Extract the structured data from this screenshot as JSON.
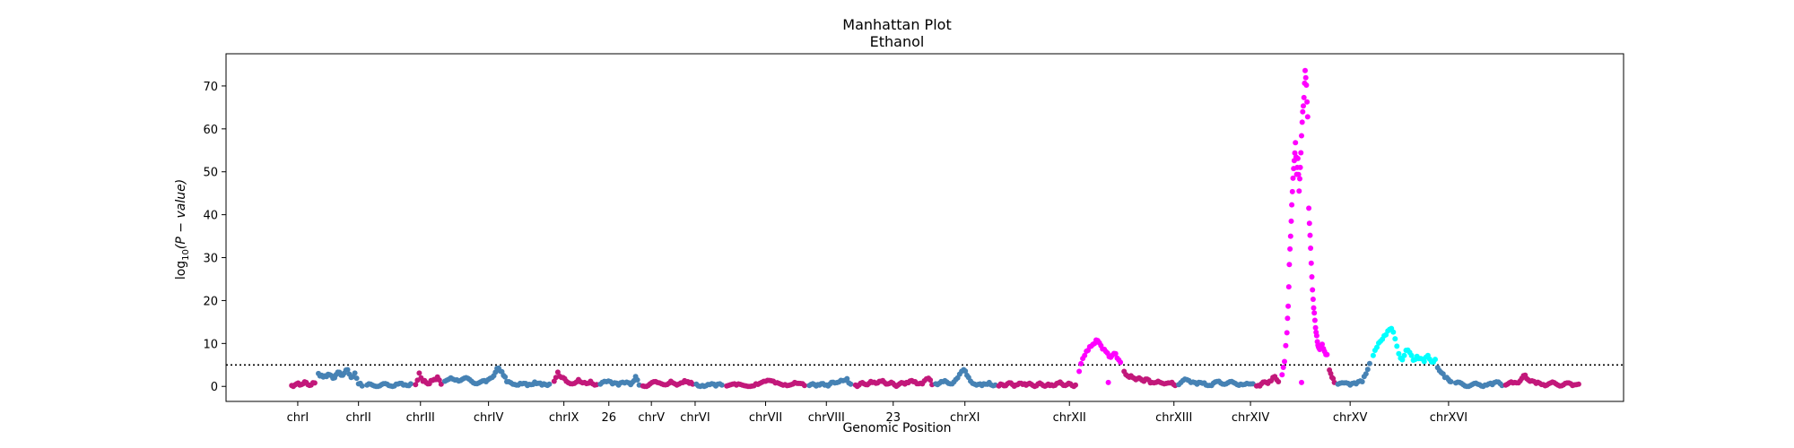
{
  "chart_data": {
    "type": "scatter",
    "title": "Manhattan Plot",
    "subtitle": "Ethanol",
    "xlabel": "Genomic Position",
    "ylabel_prefix": "log",
    "ylabel_sub": "10",
    "ylabel_rest": "(P − value)",
    "ylim": [
      -3.5,
      77.5
    ],
    "xlim": [
      0,
      100
    ],
    "y_ticks": [
      0,
      10,
      20,
      30,
      40,
      50,
      60,
      70
    ],
    "threshold": 5,
    "threshold_style": "dotted",
    "grid": false,
    "colors": {
      "magenta": "#c2187a",
      "steelblue": "#4682b4",
      "fuchsia": "#ff00ff",
      "cyan": "#00ffff",
      "axis": "#000000",
      "background": "#ffffff"
    },
    "chromosomes": [
      {
        "name": "chrI",
        "color": "magenta"
      },
      {
        "name": "chrII",
        "color": "steelblue"
      },
      {
        "name": "chrIII",
        "color": "magenta"
      },
      {
        "name": "chrIV",
        "color": "steelblue"
      },
      {
        "name": "chrIX",
        "color": "magenta"
      },
      {
        "name": "26",
        "color": "steelblue"
      },
      {
        "name": "chrV",
        "color": "magenta"
      },
      {
        "name": "chrVI",
        "color": "steelblue"
      },
      {
        "name": "chrVII",
        "color": "magenta"
      },
      {
        "name": "chrVIII",
        "color": "steelblue"
      },
      {
        "name": "23",
        "color": "magenta"
      },
      {
        "name": "chrXI",
        "color": "steelblue"
      },
      {
        "name": "chrXII",
        "color": "magenta"
      },
      {
        "name": "chrXIII",
        "color": "steelblue"
      },
      {
        "name": "chrXIV",
        "color": "magenta"
      },
      {
        "name": "chrXV",
        "color": "steelblue"
      },
      {
        "name": "chrXVI",
        "color": "magenta"
      }
    ],
    "series": [
      {
        "color": "magenta",
        "points": [
          [
            4.4,
            0.2
          ],
          [
            4.8,
            0.6
          ],
          [
            5.2,
            0.4
          ],
          [
            5.6,
            0.9
          ],
          [
            6.0,
            0.3
          ],
          [
            6.3,
            0.8
          ]
        ]
      },
      {
        "color": "steelblue",
        "points": [
          [
            6.6,
            3.0
          ],
          [
            7.0,
            2.2
          ],
          [
            7.4,
            2.8
          ],
          [
            7.8,
            1.9
          ],
          [
            8.2,
            3.3
          ],
          [
            8.6,
            2.6
          ],
          [
            9.0,
            3.9
          ],
          [
            9.3,
            2.1
          ],
          [
            9.6,
            3.1
          ],
          [
            9.9,
            0.6
          ],
          [
            10.2,
            0.1
          ]
        ]
      },
      {
        "color": "steelblue",
        "points": [
          [
            10.6,
            0.3
          ],
          [
            11.2,
            0.1
          ],
          [
            11.8,
            0.4
          ],
          [
            12.4,
            0.2
          ],
          [
            13.0,
            0.5
          ],
          [
            13.6,
            0.3
          ],
          [
            14.2,
            0.6
          ]
        ]
      },
      {
        "color": "magenta",
        "points": [
          [
            14.6,
            0.4
          ],
          [
            14.9,
            3.1
          ],
          [
            15.2,
            1.2
          ],
          [
            15.6,
            0.6
          ],
          [
            16.0,
            1.4
          ],
          [
            16.4,
            2.2
          ],
          [
            16.7,
            0.5
          ]
        ]
      },
      {
        "color": "steelblue",
        "points": [
          [
            17.0,
            1.2
          ],
          [
            17.5,
            2.0
          ],
          [
            18.0,
            1.5
          ],
          [
            18.6,
            1.9
          ],
          [
            19.2,
            1.2
          ],
          [
            19.8,
            0.8
          ],
          [
            20.4,
            1.1
          ],
          [
            20.9,
            2.1
          ],
          [
            21.3,
            4.2
          ],
          [
            21.7,
            3.4
          ],
          [
            22.1,
            1.1
          ],
          [
            22.6,
            0.5
          ],
          [
            23.2,
            0.7
          ],
          [
            23.8,
            0.2
          ],
          [
            24.4,
            1.0
          ],
          [
            25.0,
            0.3
          ],
          [
            25.6,
            0.5
          ]
        ]
      },
      {
        "color": "magenta",
        "points": [
          [
            26.0,
            1.2
          ],
          [
            26.3,
            3.3
          ],
          [
            26.6,
            2.1
          ],
          [
            27.0,
            1.2
          ],
          [
            27.5,
            0.6
          ],
          [
            28.0,
            1.6
          ],
          [
            28.5,
            0.9
          ],
          [
            29.0,
            1.2
          ],
          [
            29.5,
            0.4
          ]
        ]
      },
      {
        "color": "steelblue",
        "points": [
          [
            29.8,
            0.5
          ],
          [
            30.3,
            1.1
          ],
          [
            30.8,
            0.6
          ],
          [
            31.3,
            0.3
          ],
          [
            31.8,
            0.8
          ],
          [
            32.3,
            0.4
          ],
          [
            32.7,
            2.3
          ],
          [
            33.0,
            0.3
          ]
        ]
      },
      {
        "color": "magenta",
        "points": [
          [
            33.3,
            0.1
          ],
          [
            33.9,
            0.6
          ],
          [
            34.5,
            0.9
          ],
          [
            35.0,
            0.4
          ],
          [
            35.6,
            1.2
          ],
          [
            36.1,
            0.3
          ],
          [
            36.6,
            0.9
          ],
          [
            37.0,
            1.1
          ],
          [
            37.4,
            0.5
          ]
        ]
      },
      {
        "color": "steelblue",
        "points": [
          [
            37.7,
            0.5
          ],
          [
            38.2,
            0.2
          ],
          [
            38.8,
            0.4
          ],
          [
            39.3,
            0.1
          ],
          [
            39.8,
            0.3
          ]
        ]
      },
      {
        "color": "magenta",
        "points": [
          [
            40.2,
            0.1
          ],
          [
            41.0,
            0.3
          ],
          [
            41.8,
            0.1
          ],
          [
            42.6,
            0.6
          ],
          [
            43.4,
            1.2
          ],
          [
            44.2,
            0.8
          ],
          [
            45.0,
            0.4
          ],
          [
            45.8,
            0.9
          ],
          [
            46.6,
            0.2
          ]
        ]
      },
      {
        "color": "steelblue",
        "points": [
          [
            47.0,
            0.2
          ],
          [
            47.7,
            0.4
          ],
          [
            48.4,
            0.3
          ],
          [
            49.1,
            0.8
          ],
          [
            49.6,
            1.4
          ],
          [
            50.1,
            1.8
          ],
          [
            50.4,
            0.5
          ]
        ]
      },
      {
        "color": "magenta",
        "points": [
          [
            50.8,
            0.3
          ],
          [
            51.5,
            0.6
          ],
          [
            52.2,
            0.9
          ],
          [
            52.9,
            1.2
          ],
          [
            53.6,
            0.7
          ],
          [
            54.3,
            0.3
          ],
          [
            55.0,
            0.9
          ],
          [
            55.7,
            1.1
          ],
          [
            56.3,
            0.6
          ],
          [
            56.8,
            1.9
          ],
          [
            57.1,
            0.4
          ]
        ]
      },
      {
        "color": "steelblue",
        "points": [
          [
            57.4,
            0.6
          ],
          [
            58.0,
            1.1
          ],
          [
            58.6,
            0.6
          ],
          [
            59.2,
            2.0
          ],
          [
            59.7,
            3.9
          ],
          [
            60.1,
            2.1
          ],
          [
            60.6,
            0.5
          ],
          [
            61.2,
            0.2
          ],
          [
            61.8,
            0.9
          ],
          [
            62.3,
            0.3
          ]
        ]
      },
      {
        "color": "magenta",
        "points": [
          [
            62.6,
            0.1
          ],
          [
            63.3,
            0.6
          ],
          [
            64.0,
            0.3
          ],
          [
            64.7,
            0.6
          ],
          [
            65.4,
            0.2
          ],
          [
            66.1,
            0.5
          ],
          [
            66.8,
            0.2
          ],
          [
            67.5,
            0.8
          ],
          [
            68.2,
            0.4
          ],
          [
            68.9,
            0.3
          ]
        ]
      },
      {
        "color": "fuchsia",
        "points": [
          [
            69.2,
            3.5
          ],
          [
            69.5,
            6.5
          ],
          [
            69.8,
            8.2
          ],
          [
            70.2,
            9.4
          ],
          [
            70.6,
            10.8
          ],
          [
            71.0,
            9.5
          ],
          [
            71.4,
            8.1
          ],
          [
            71.8,
            6.8
          ],
          [
            72.2,
            7.6
          ],
          [
            72.6,
            5.6
          ],
          [
            71.6,
            0.9
          ]
        ]
      },
      {
        "color": "magenta",
        "points": [
          [
            72.9,
            3.5
          ],
          [
            73.2,
            2.4
          ],
          [
            73.6,
            2.1
          ],
          [
            74.0,
            1.8
          ],
          [
            74.4,
            1.4
          ],
          [
            74.8,
            1.7
          ],
          [
            75.2,
            0.9
          ],
          [
            75.7,
            1.2
          ],
          [
            76.2,
            0.6
          ],
          [
            76.7,
            0.8
          ],
          [
            77.1,
            0.2
          ]
        ]
      },
      {
        "color": "steelblue",
        "points": [
          [
            77.4,
            0.4
          ],
          [
            77.9,
            1.7
          ],
          [
            78.4,
            0.9
          ],
          [
            78.9,
            0.5
          ],
          [
            79.5,
            0.8
          ],
          [
            80.1,
            0.2
          ],
          [
            80.7,
            1.2
          ],
          [
            81.3,
            0.6
          ],
          [
            81.9,
            0.9
          ],
          [
            82.5,
            0.5
          ],
          [
            83.0,
            0.7
          ],
          [
            83.5,
            0.6
          ]
        ]
      },
      {
        "color": "magenta",
        "points": [
          [
            83.8,
            0.1
          ],
          [
            84.2,
            0.6
          ],
          [
            84.6,
            0.9
          ],
          [
            85.0,
            1.3
          ],
          [
            85.3,
            2.3
          ],
          [
            85.6,
            1.1
          ]
        ]
      },
      {
        "color": "fuchsia",
        "points": [
          [
            85.9,
            2.7
          ],
          [
            86.1,
            5.8
          ],
          [
            86.3,
            12.5
          ],
          [
            86.4,
            18.7
          ],
          [
            86.5,
            28.4
          ],
          [
            86.6,
            35.0
          ],
          [
            86.7,
            42.3
          ],
          [
            86.8,
            48.5
          ],
          [
            86.9,
            52.6
          ],
          [
            87.0,
            56.8
          ],
          [
            87.1,
            49.4
          ],
          [
            87.2,
            53.1
          ],
          [
            87.3,
            45.5
          ],
          [
            87.4,
            51.0
          ],
          [
            87.5,
            58.4
          ],
          [
            87.6,
            64.0
          ],
          [
            87.7,
            67.3
          ],
          [
            87.8,
            73.6
          ],
          [
            87.9,
            70.2
          ],
          [
            88.0,
            62.8
          ],
          [
            88.1,
            41.5
          ],
          [
            88.2,
            35.2
          ],
          [
            88.3,
            28.7
          ],
          [
            88.4,
            22.5
          ],
          [
            88.5,
            18.3
          ],
          [
            88.6,
            15.4
          ],
          [
            88.7,
            12.6
          ],
          [
            88.8,
            10.4
          ],
          [
            88.9,
            9.2
          ],
          [
            89.0,
            8.6
          ],
          [
            89.2,
            9.8
          ],
          [
            89.4,
            8.1
          ],
          [
            89.6,
            7.4
          ],
          [
            87.5,
            0.9
          ]
        ]
      },
      {
        "color": "magenta",
        "points": [
          [
            89.8,
            3.8
          ],
          [
            90.0,
            2.1
          ],
          [
            90.2,
            0.9
          ]
        ]
      },
      {
        "color": "steelblue",
        "points": [
          [
            90.5,
            0.5
          ],
          [
            91.0,
            0.8
          ],
          [
            91.5,
            0.3
          ],
          [
            92.0,
            0.6
          ],
          [
            92.5,
            1.1
          ],
          [
            92.8,
            2.9
          ],
          [
            93.1,
            5.3
          ]
        ]
      },
      {
        "color": "cyan",
        "points": [
          [
            93.4,
            7.2
          ],
          [
            93.7,
            9.1
          ],
          [
            94.0,
            10.5
          ],
          [
            94.3,
            11.8
          ],
          [
            94.6,
            12.9
          ],
          [
            94.9,
            13.5
          ],
          [
            95.2,
            11.1
          ],
          [
            95.5,
            7.6
          ],
          [
            95.8,
            6.2
          ],
          [
            96.1,
            8.4
          ],
          [
            96.4,
            7.9
          ],
          [
            96.7,
            6.1
          ],
          [
            97.0,
            7.0
          ],
          [
            97.3,
            6.5
          ],
          [
            97.6,
            5.8
          ],
          [
            97.9,
            7.2
          ],
          [
            98.2,
            5.7
          ],
          [
            98.5,
            6.3
          ]
        ]
      },
      {
        "color": "steelblue",
        "points": [
          [
            98.7,
            4.4
          ],
          [
            99.0,
            3.2
          ],
          [
            99.3,
            2.1
          ],
          [
            99.6,
            1.6
          ],
          [
            99.8,
            1.1
          ]
        ]
      },
      {
        "color": "steelblue",
        "points": [
          [
            100.2,
            0.8
          ],
          [
            100.8,
            0.4
          ],
          [
            101.4,
            0.2
          ],
          [
            102.0,
            0.5
          ],
          [
            102.6,
            0.3
          ],
          [
            103.2,
            0.4
          ],
          [
            103.7,
            1.0
          ],
          [
            104.0,
            0.2
          ]
        ]
      },
      {
        "color": "magenta",
        "points": [
          [
            104.3,
            0.3
          ],
          [
            104.9,
            0.8
          ],
          [
            105.5,
            1.3
          ],
          [
            105.9,
            2.6
          ],
          [
            106.3,
            1.2
          ],
          [
            106.8,
            0.7
          ],
          [
            107.4,
            0.4
          ],
          [
            108.0,
            0.8
          ],
          [
            108.6,
            0.3
          ],
          [
            109.2,
            0.7
          ],
          [
            109.8,
            0.2
          ],
          [
            110.3,
            0.5
          ]
        ]
      }
    ],
    "tick_positions": [
      4.9,
      9.9,
      15.0,
      20.6,
      26.8,
      30.5,
      34.0,
      37.6,
      43.4,
      48.4,
      53.9,
      59.8,
      68.4,
      77.0,
      83.3,
      91.5,
      99.6
    ],
    "x_domain": [
      -1.0,
      114.0
    ]
  }
}
